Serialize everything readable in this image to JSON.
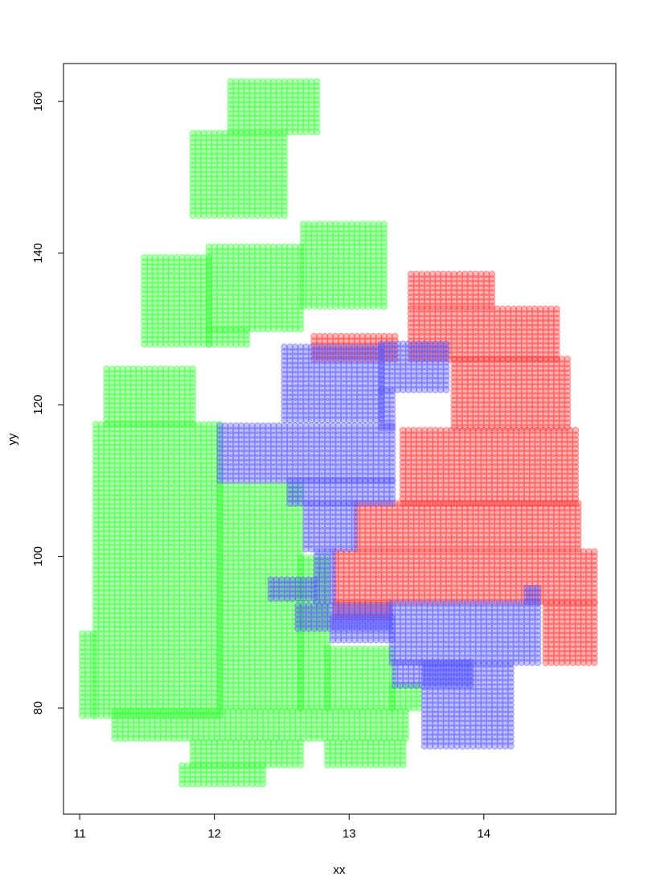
{
  "chart_data": {
    "type": "scatter",
    "title": "",
    "xlabel": "xx",
    "ylabel": "yy",
    "xlim": [
      10.88,
      14.98
    ],
    "ylim": [
      66,
      165
    ],
    "grid": false,
    "legend": "none",
    "x_ticks": [
      11,
      12,
      13,
      14
    ],
    "y_ticks": [
      80,
      100,
      120,
      140,
      160
    ],
    "point_step": {
      "dx": 0.04,
      "dy": 0.6
    },
    "marker": "filled-circle-transparent",
    "series": [
      {
        "color": "#33ff33",
        "regions": [
          {
            "x": [
              12.12,
              12.78
            ],
            "y": [
              156.0,
              162.6
            ]
          },
          {
            "x": [
              11.84,
              12.52
            ],
            "y": [
              145.0,
              156.0
            ]
          },
          {
            "x": [
              12.66,
              13.28
            ],
            "y": [
              133.0,
              144.0
            ]
          },
          {
            "x": [
              11.96,
              12.66
            ],
            "y": [
              130.0,
              141.0
            ]
          },
          {
            "x": [
              11.48,
              11.96
            ],
            "y": [
              128.0,
              139.5
            ]
          },
          {
            "x": [
              11.96,
              12.24
            ],
            "y": [
              128.0,
              130.0
            ]
          },
          {
            "x": [
              11.2,
              11.84
            ],
            "y": [
              117.5,
              124.8
            ]
          },
          {
            "x": [
              11.12,
              12.04
            ],
            "y": [
              79.0,
              117.5
            ]
          },
          {
            "x": [
              11.02,
              11.12
            ],
            "y": [
              79.0,
              90.0
            ]
          },
          {
            "x": [
              12.04,
              12.64
            ],
            "y": [
              80.0,
              109.5
            ]
          },
          {
            "x": [
              12.64,
              12.84
            ],
            "y": [
              80.0,
              100.0
            ]
          },
          {
            "x": [
              12.84,
              13.32
            ],
            "y": [
              80.0,
              88.0
            ]
          },
          {
            "x": [
              13.32,
              13.54
            ],
            "y": [
              80.0,
              83.0
            ]
          },
          {
            "x": [
              11.26,
              13.42
            ],
            "y": [
              76.0,
              80.0
            ]
          },
          {
            "x": [
              11.84,
              12.64
            ],
            "y": [
              72.5,
              76.0
            ]
          },
          {
            "x": [
              12.84,
              13.42
            ],
            "y": [
              72.5,
              76.0
            ]
          },
          {
            "x": [
              11.76,
              12.38
            ],
            "y": [
              70.0,
              72.5
            ]
          }
        ]
      },
      {
        "color": "#ff3333",
        "regions": [
          {
            "x": [
              13.46,
              14.08
            ],
            "y": [
              133.0,
              137.6
            ]
          },
          {
            "x": [
              13.46,
              14.54
            ],
            "y": [
              126.0,
              133.0
            ]
          },
          {
            "x": [
              12.74,
              13.34
            ],
            "y": [
              126.0,
              129.4
            ]
          },
          {
            "x": [
              13.78,
              14.64
            ],
            "y": [
              117.0,
              126.0
            ]
          },
          {
            "x": [
              13.4,
              14.68
            ],
            "y": [
              107.0,
              117.0
            ]
          },
          {
            "x": [
              13.06,
              14.72
            ],
            "y": [
              101.0,
              107.0
            ]
          },
          {
            "x": [
              12.9,
              14.82
            ],
            "y": [
              94.0,
              101.0
            ]
          },
          {
            "x": [
              12.9,
              13.32
            ],
            "y": [
              92.0,
              94.0
            ]
          },
          {
            "x": [
              14.46,
              14.82
            ],
            "y": [
              86.0,
              94.0
            ]
          }
        ]
      },
      {
        "color": "#5555ff",
        "regions": [
          {
            "x": [
              12.52,
              13.24
            ],
            "y": [
              118.0,
              127.6
            ]
          },
          {
            "x": [
              13.24,
              13.72
            ],
            "y": [
              122.0,
              128.2
            ]
          },
          {
            "x": [
              13.24,
              13.34
            ],
            "y": [
              117.0,
              122.0
            ]
          },
          {
            "x": [
              12.04,
              13.34
            ],
            "y": [
              110.0,
              117.5
            ]
          },
          {
            "x": [
              12.56,
              13.34
            ],
            "y": [
              107.0,
              110.0
            ]
          },
          {
            "x": [
              12.68,
              13.04
            ],
            "y": [
              101.0,
              107.0
            ]
          },
          {
            "x": [
              12.76,
              12.88
            ],
            "y": [
              94.0,
              101.0
            ]
          },
          {
            "x": [
              12.42,
              12.76
            ],
            "y": [
              94.5,
              97.0
            ]
          },
          {
            "x": [
              12.62,
              13.32
            ],
            "y": [
              90.5,
              94.0
            ]
          },
          {
            "x": [
              12.88,
              13.32
            ],
            "y": [
              89.0,
              92.0
            ]
          },
          {
            "x": [
              13.32,
              14.42
            ],
            "y": [
              86.0,
              94.0
            ]
          },
          {
            "x": [
              14.32,
              14.4
            ],
            "y": [
              94.0,
              96.0
            ]
          },
          {
            "x": [
              13.34,
              13.92
            ],
            "y": [
              83.0,
              86.0
            ]
          },
          {
            "x": [
              13.56,
              14.2
            ],
            "y": [
              75.0,
              86.0
            ]
          }
        ]
      }
    ]
  }
}
